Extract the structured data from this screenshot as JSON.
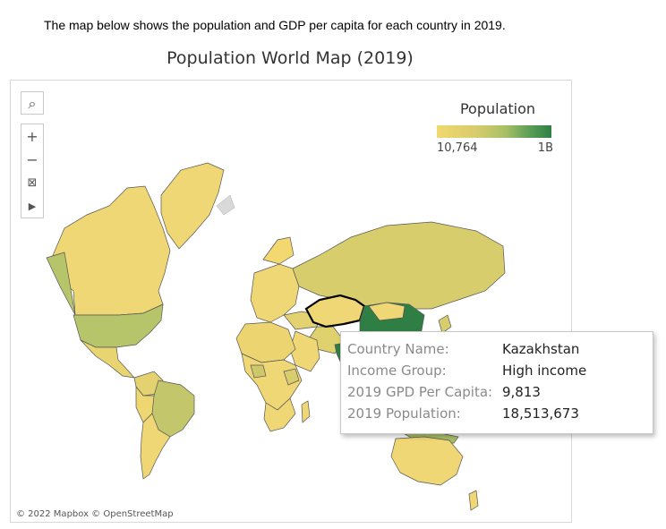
{
  "intro_text": "The map below shows the population and GDP per capita for each country in 2019.",
  "title": "Population World Map (2019)",
  "toolbar": {
    "search_icon": "⌕",
    "zoom_in": "+",
    "zoom_out": "−",
    "reset_icon": "⊠",
    "expand_icon": "▶"
  },
  "legend": {
    "title": "Population",
    "min_label": "10,764",
    "max_label": "1B",
    "colors": [
      "#f2d86e",
      "#2f7f45"
    ]
  },
  "attribution": "© 2022 Mapbox © OpenStreetMap",
  "tooltip": {
    "rows": [
      {
        "key": "Country Name:",
        "value": "Kazakhstan"
      },
      {
        "key": "Income Group:",
        "value": "High income"
      },
      {
        "key": "2019 GPD Per Capita:",
        "value": "9,813"
      },
      {
        "key": "2019 Population:",
        "value": "18,513,673"
      }
    ]
  },
  "colors": {
    "low": "#f2d86e",
    "mid": "#d8cd6c",
    "usa": "#b7c56a",
    "brazil": "#c3c66a",
    "high": "#2f7f45"
  }
}
